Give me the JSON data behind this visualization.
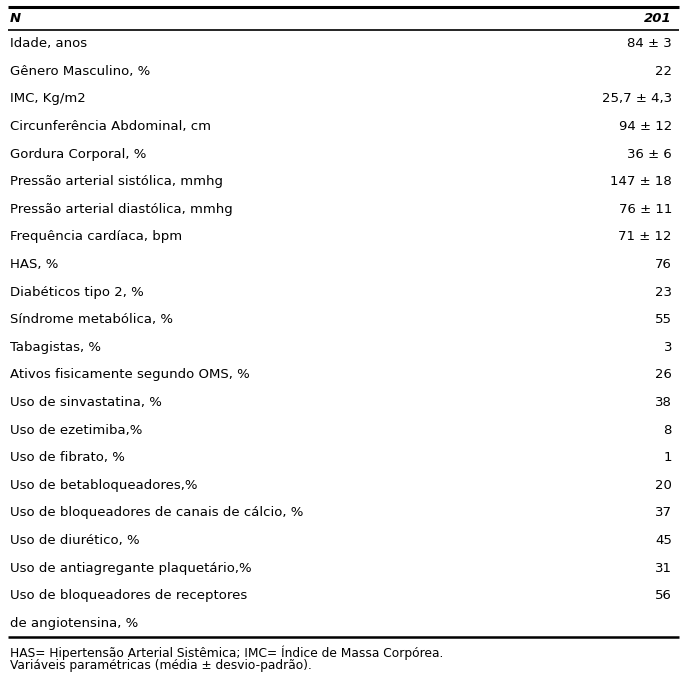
{
  "header_col1": "N",
  "header_col2": "201",
  "rows": [
    [
      "Idade, anos",
      "84 ± 3"
    ],
    [
      "Gênero Masculino, %",
      "22"
    ],
    [
      "IMC, Kg/m2",
      "25,7 ± 4,3"
    ],
    [
      "Circunferência Abdominal, cm",
      "94 ± 12"
    ],
    [
      "Gordura Corporal, %",
      "36 ± 6"
    ],
    [
      "Pressão arterial sistólica, mmhg",
      "147 ± 18"
    ],
    [
      "Pressão arterial diastólica, mmhg",
      "76 ± 11"
    ],
    [
      "Frequência cardíaca, bpm",
      "71 ± 12"
    ],
    [
      "HAS, %",
      "76"
    ],
    [
      "Diabéticos tipo 2, %",
      "23"
    ],
    [
      "Síndrome metabólica, %",
      "55"
    ],
    [
      "Tabagistas, %",
      "3"
    ],
    [
      "Ativos fisicamente segundo OMS, %",
      "26"
    ],
    [
      "Uso de sinvastatina, %",
      "38"
    ],
    [
      "Uso de ezetimiba,%",
      "8"
    ],
    [
      "Uso de fibrato, %",
      "1"
    ],
    [
      "Uso de betabloqueadores,%",
      "20"
    ],
    [
      "Uso de bloqueadores de canais de cálcio, %",
      "37"
    ],
    [
      "Uso de diurético, %",
      "45"
    ],
    [
      "Uso de antiagregante plaquetário,%",
      "31"
    ],
    [
      "Uso de bloqueadores de receptores",
      "56"
    ],
    [
      "de angiotensina, %",
      ""
    ]
  ],
  "footnote_line1": "HAS= Hipertensão Arterial Sistêmica; IMC= Índice de Massa Corpórea.",
  "footnote_line2": "Variáveis paramétricas (média ± desvio-padrão).",
  "bg_color": "#ffffff",
  "text_color": "#000000",
  "font_size": 9.5,
  "header_font_size": 9.5,
  "footnote_font_size": 8.8
}
